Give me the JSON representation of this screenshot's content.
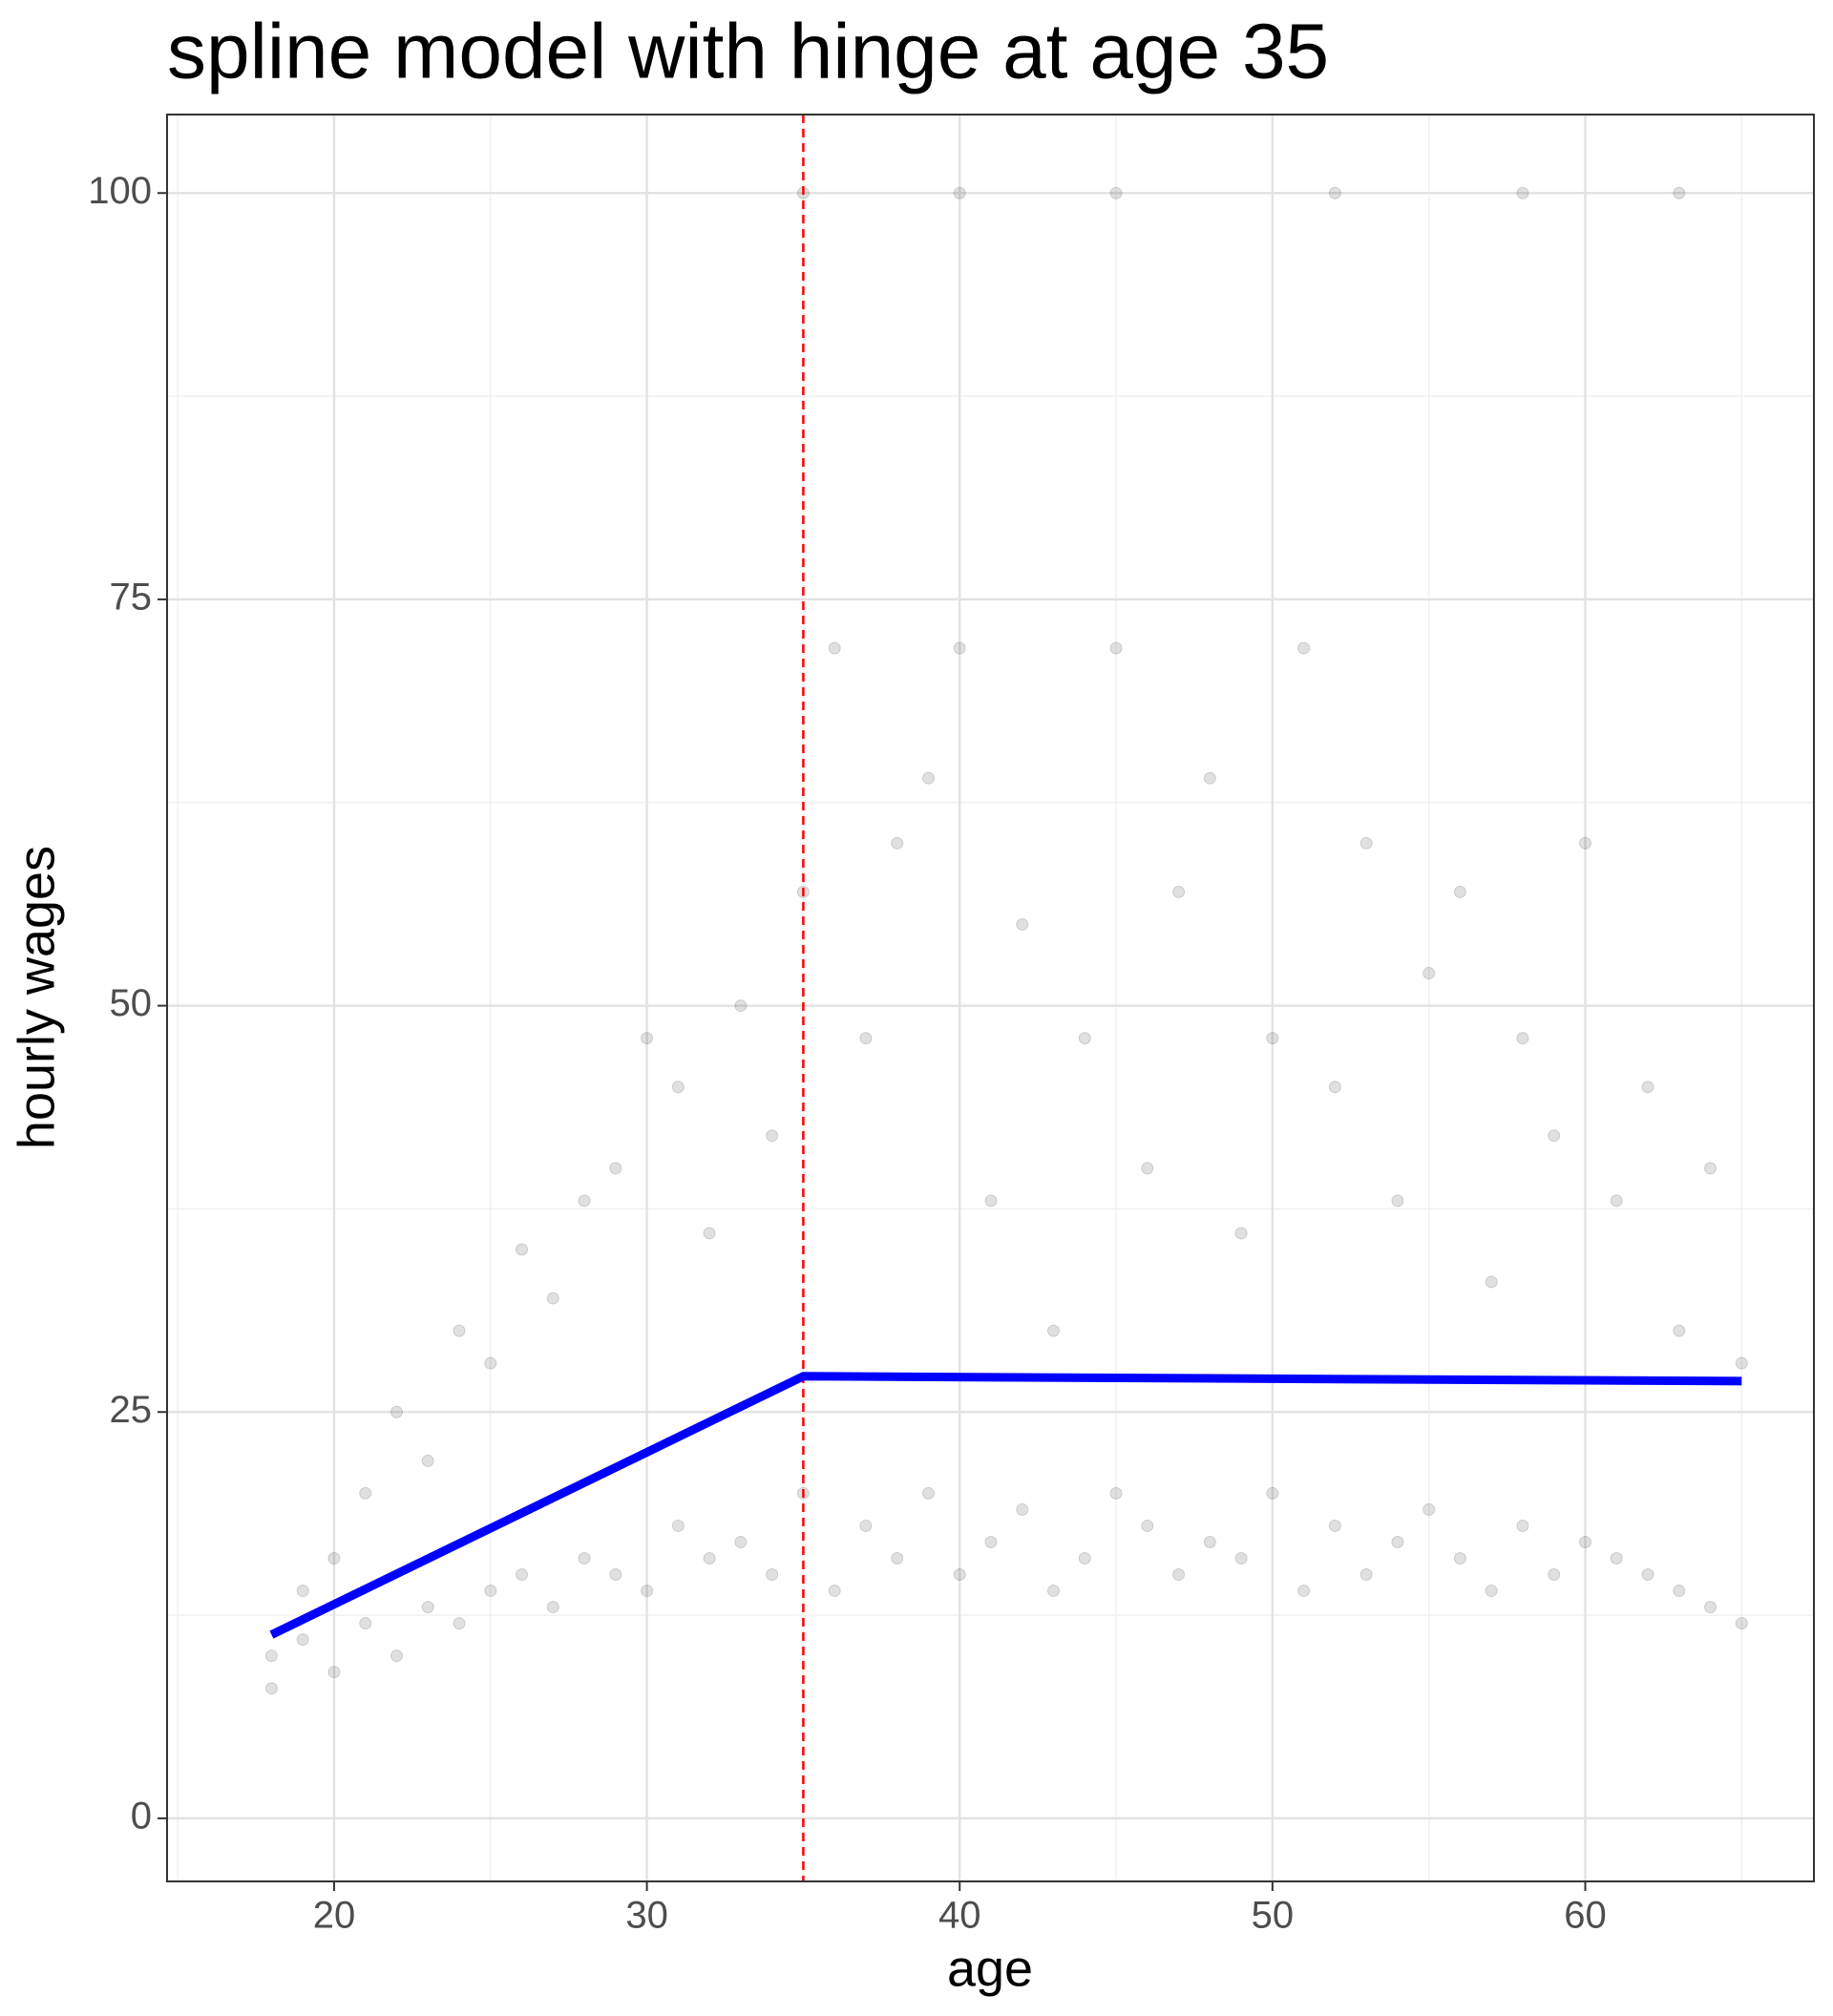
{
  "chart_data": {
    "type": "scatter",
    "title": "spline model with hinge at age 35",
    "xlabel": "age",
    "ylabel": "hourly wages",
    "xlim": [
      14.66,
      67.31
    ],
    "ylim": [
      -3.88,
      104.83
    ],
    "xticks": [
      20,
      30,
      40,
      50,
      60
    ],
    "yticks": [
      0,
      25,
      50,
      75,
      100
    ],
    "xminor": [
      15,
      25,
      35,
      45,
      55,
      65
    ],
    "yminor": [
      12.5,
      37.5,
      62.5,
      87.5
    ],
    "grid": true,
    "points": {
      "color": "#000000",
      "x": [
        18,
        19,
        20,
        21,
        22,
        23,
        24,
        25,
        26,
        27,
        28,
        29,
        30,
        31,
        32,
        33,
        34,
        35,
        36,
        37,
        38,
        39,
        40,
        41,
        42,
        43,
        44,
        45,
        46,
        47,
        48,
        49,
        50,
        51,
        52,
        53,
        54,
        55,
        56,
        57,
        58,
        59,
        60,
        61,
        62,
        63,
        64,
        65,
        18,
        19,
        20,
        21,
        22,
        23,
        24,
        25,
        26,
        27,
        28,
        29,
        30,
        31,
        32,
        33,
        34,
        35,
        36,
        37,
        38,
        39,
        40,
        41,
        42,
        43,
        44,
        45,
        46,
        47,
        48,
        49,
        50,
        51,
        52,
        53,
        54,
        55,
        56,
        57,
        58,
        59,
        60,
        61,
        62,
        63,
        64,
        65,
        35,
        40,
        45,
        52,
        58,
        63
      ],
      "y": [
        10,
        11,
        9,
        12,
        10,
        13,
        12,
        14,
        15,
        13,
        16,
        15,
        14,
        18,
        16,
        17,
        15,
        20,
        14,
        18,
        16,
        20,
        15,
        17,
        19,
        14,
        16,
        20,
        18,
        15,
        17,
        16,
        20,
        14,
        18,
        15,
        17,
        19,
        16,
        14,
        18,
        15,
        17,
        16,
        15,
        14,
        13,
        12,
        8,
        14,
        16,
        20,
        25,
        22,
        30,
        28,
        35,
        32,
        38,
        40,
        48,
        45,
        36,
        50,
        42,
        57,
        72,
        48,
        60,
        64,
        72,
        38,
        55,
        30,
        48,
        72,
        40,
        57,
        64,
        36,
        48,
        72,
        45,
        60,
        38,
        52,
        57,
        33,
        48,
        42,
        60,
        38,
        45,
        30,
        40,
        28,
        100,
        100,
        100,
        100,
        100,
        100
      ]
    },
    "series": [
      {
        "name": "spline",
        "color": "#0000ff",
        "x": [
          18,
          35,
          65
        ],
        "values": [
          11.3,
          27.2,
          26.9
        ]
      }
    ],
    "vline": {
      "x": 35,
      "color": "#ff0000"
    }
  }
}
